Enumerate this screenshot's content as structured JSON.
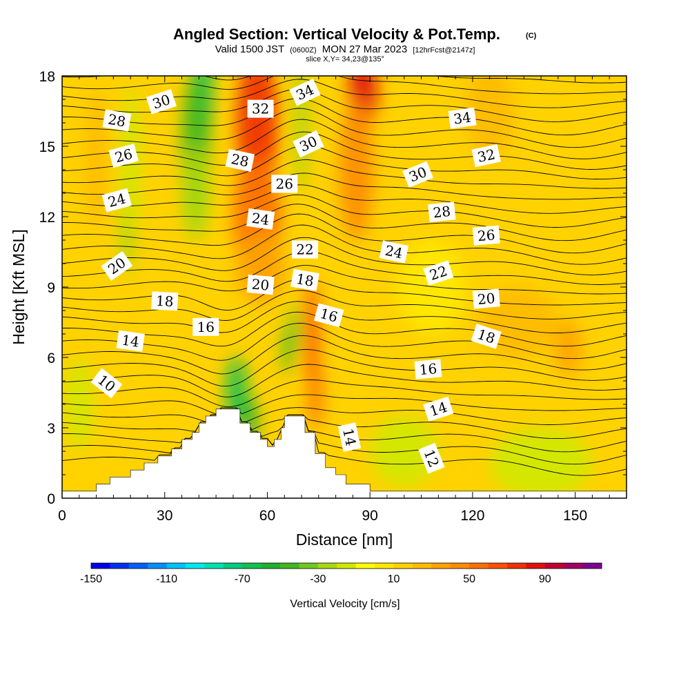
{
  "header": {
    "title": "Angled Section: Vertical Velocity & Pot.Temp.",
    "copyright": "(C)",
    "valid_prefix": "Valid 1500 JST",
    "valid_utc": "(0600Z)",
    "valid_date": "MON 27 Mar 2023",
    "forecast": "[12hrFcst@2147z]",
    "slice": "slice X,Y= 34,23@135°"
  },
  "chart_data": {
    "type": "heatmap",
    "xlabel": "Distance [nm]",
    "ylabel": "Height [Kft MSL]",
    "xlim": [
      0,
      165
    ],
    "ylim": [
      0,
      18
    ],
    "xticks": [
      0,
      30,
      60,
      90,
      120,
      150
    ],
    "yticks": [
      0,
      3,
      6,
      9,
      12,
      15,
      18
    ],
    "terrain_profile": [
      [
        0,
        0.3
      ],
      [
        10,
        0.3
      ],
      [
        10,
        0.6
      ],
      [
        14,
        0.6
      ],
      [
        14,
        0.9
      ],
      [
        20,
        0.9
      ],
      [
        20,
        1.2
      ],
      [
        24,
        1.2
      ],
      [
        24,
        1.5
      ],
      [
        28,
        1.5
      ],
      [
        28,
        1.8
      ],
      [
        32,
        1.8
      ],
      [
        32,
        2.1
      ],
      [
        35,
        2.1
      ],
      [
        35,
        2.5
      ],
      [
        38,
        2.5
      ],
      [
        38,
        2.8
      ],
      [
        40,
        2.8
      ],
      [
        40,
        3.2
      ],
      [
        42,
        3.2
      ],
      [
        42,
        3.5
      ],
      [
        45,
        3.5
      ],
      [
        45,
        3.8
      ],
      [
        52,
        3.8
      ],
      [
        52,
        3.2
      ],
      [
        55,
        3.2
      ],
      [
        55,
        2.8
      ],
      [
        58,
        2.8
      ],
      [
        58,
        2.5
      ],
      [
        60,
        2.5
      ],
      [
        60,
        2.2
      ],
      [
        62,
        2.2
      ],
      [
        62,
        2.5
      ],
      [
        64,
        2.5
      ],
      [
        64,
        3.0
      ],
      [
        65,
        3.0
      ],
      [
        65,
        3.5
      ],
      [
        71,
        3.5
      ],
      [
        71,
        2.8
      ],
      [
        74,
        2.8
      ],
      [
        74,
        1.9
      ],
      [
        77,
        1.9
      ],
      [
        77,
        1.3
      ],
      [
        80,
        1.3
      ],
      [
        80,
        1.0
      ],
      [
        83,
        1.0
      ],
      [
        83,
        0.6
      ],
      [
        90,
        0.6
      ],
      [
        90,
        0.3
      ],
      [
        165,
        0.3
      ]
    ],
    "velocity_features": [
      {
        "x": 41,
        "y": 17.5,
        "value": -65,
        "rx": 3,
        "ry": 2.5
      },
      {
        "x": 39,
        "y": 15,
        "value": -45,
        "rx": 4,
        "ry": 3
      },
      {
        "x": 39,
        "y": 13,
        "value": -30,
        "rx": 4,
        "ry": 2
      },
      {
        "x": 19,
        "y": 11.5,
        "value": -28,
        "rx": 2,
        "ry": 2
      },
      {
        "x": 20,
        "y": 14.5,
        "value": -20,
        "rx": 3,
        "ry": 3
      },
      {
        "x": 57,
        "y": 16,
        "value": 78,
        "rx": 6,
        "ry": 3
      },
      {
        "x": 57,
        "y": 12,
        "value": 55,
        "rx": 7,
        "ry": 2.5
      },
      {
        "x": 58,
        "y": 9.8,
        "value": 35,
        "rx": 7,
        "ry": 1.5
      },
      {
        "x": 88,
        "y": 17.3,
        "value": 85,
        "rx": 4,
        "ry": 1.5
      },
      {
        "x": 86,
        "y": 14,
        "value": 40,
        "rx": 5,
        "ry": 3
      },
      {
        "x": 70,
        "y": 16,
        "value": -22,
        "rx": 2,
        "ry": 3
      },
      {
        "x": 73,
        "y": 7,
        "value": 60,
        "rx": 2,
        "ry": 2.3
      },
      {
        "x": 74,
        "y": 4.5,
        "value": 50,
        "rx": 2,
        "ry": 1.6
      },
      {
        "x": 51,
        "y": 4.6,
        "value": -70,
        "rx": 3,
        "ry": 1.4
      },
      {
        "x": 55,
        "y": 3.3,
        "value": -55,
        "rx": 2,
        "ry": 1
      },
      {
        "x": 66,
        "y": 6.3,
        "value": -45,
        "rx": 1.5,
        "ry": 1
      },
      {
        "x": 68,
        "y": 7.3,
        "value": -35,
        "rx": 1.5,
        "ry": 1
      },
      {
        "x": 148,
        "y": 6.4,
        "value": 35,
        "rx": 4,
        "ry": 1.2
      },
      {
        "x": 10,
        "y": 14.5,
        "value": 22,
        "rx": 3,
        "ry": 3
      },
      {
        "x": 28,
        "y": 6,
        "value": 18,
        "rx": 5,
        "ry": 1.5
      },
      {
        "x": 125,
        "y": 16.5,
        "value": 20,
        "rx": 7,
        "ry": 2
      },
      {
        "x": 133,
        "y": 7.5,
        "value": 20,
        "rx": 12,
        "ry": 1.5
      },
      {
        "x": 100,
        "y": 2,
        "value": -18,
        "rx": 10,
        "ry": 1.5
      },
      {
        "x": 140,
        "y": 1.5,
        "value": -12,
        "rx": 15,
        "ry": 1.5
      },
      {
        "x": 108,
        "y": 9,
        "value": 8,
        "rx": 10,
        "ry": 2
      },
      {
        "x": 5,
        "y": 4,
        "value": -15,
        "rx": 4,
        "ry": 2
      }
    ],
    "contour_labels": [
      {
        "text": "28",
        "x": 16,
        "y": 16.1,
        "angle": -10
      },
      {
        "text": "30",
        "x": 29,
        "y": 16.9,
        "angle": 18
      },
      {
        "text": "32",
        "x": 58,
        "y": 16.6,
        "angle": 0
      },
      {
        "text": "34",
        "x": 71,
        "y": 17.3,
        "angle": 25
      },
      {
        "text": "26",
        "x": 18,
        "y": 14.6,
        "angle": 15
      },
      {
        "text": "28",
        "x": 52,
        "y": 14.4,
        "angle": -12
      },
      {
        "text": "30",
        "x": 72,
        "y": 15.1,
        "angle": 25
      },
      {
        "text": "24",
        "x": 16,
        "y": 12.7,
        "angle": 15
      },
      {
        "text": "26",
        "x": 65,
        "y": 13.4,
        "angle": 0
      },
      {
        "text": "24",
        "x": 58,
        "y": 11.9,
        "angle": -8
      },
      {
        "text": "22",
        "x": 71,
        "y": 10.6,
        "angle": 0
      },
      {
        "text": "20",
        "x": 16,
        "y": 9.9,
        "angle": 35
      },
      {
        "text": "20",
        "x": 58,
        "y": 9.1,
        "angle": -5
      },
      {
        "text": "18",
        "x": 71,
        "y": 9.3,
        "angle": -10
      },
      {
        "text": "18",
        "x": 30,
        "y": 8.4,
        "angle": -3
      },
      {
        "text": "16",
        "x": 42,
        "y": 7.3,
        "angle": 0
      },
      {
        "text": "16",
        "x": 78,
        "y": 7.8,
        "angle": -15
      },
      {
        "text": "14",
        "x": 20,
        "y": 6.7,
        "angle": -8
      },
      {
        "text": "10",
        "x": 13,
        "y": 4.9,
        "angle": -38
      },
      {
        "text": "34",
        "x": 117,
        "y": 16.2,
        "angle": 8
      },
      {
        "text": "32",
        "x": 124,
        "y": 14.6,
        "angle": 12
      },
      {
        "text": "30",
        "x": 104,
        "y": 13.8,
        "angle": 22
      },
      {
        "text": "28",
        "x": 111,
        "y": 12.2,
        "angle": 6
      },
      {
        "text": "26",
        "x": 124,
        "y": 11.2,
        "angle": 5
      },
      {
        "text": "24",
        "x": 97,
        "y": 10.5,
        "angle": -12
      },
      {
        "text": "22",
        "x": 110,
        "y": 9.6,
        "angle": 18
      },
      {
        "text": "20",
        "x": 124,
        "y": 8.5,
        "angle": 5
      },
      {
        "text": "18",
        "x": 124,
        "y": 6.9,
        "angle": -18
      },
      {
        "text": "16",
        "x": 107,
        "y": 5.5,
        "angle": 5
      },
      {
        "text": "14",
        "x": 110,
        "y": 3.8,
        "angle": 18
      },
      {
        "text": "14",
        "x": 84,
        "y": 2.6,
        "angle": -78
      },
      {
        "text": "12",
        "x": 108,
        "y": 1.7,
        "angle": -68
      }
    ],
    "colorbar": {
      "label": "Vertical Velocity [cm/s]",
      "min": -150,
      "max": 120,
      "step": 10,
      "ticks": [
        -150,
        -110,
        -70,
        -30,
        10,
        50,
        90
      ],
      "colors": [
        "#0000e6",
        "#0030f0",
        "#0060f8",
        "#0090ff",
        "#00c0ff",
        "#00e8f0",
        "#00e0b0",
        "#00cc80",
        "#10c050",
        "#20b030",
        "#40b820",
        "#70c820",
        "#a8d810",
        "#d0e800",
        "#ffff00",
        "#ffe800",
        "#ffd200",
        "#ffbb00",
        "#ffa300",
        "#ff8c00",
        "#ff7000",
        "#ff5000",
        "#f03000",
        "#e01010",
        "#c00030",
        "#a00060",
        "#800090"
      ]
    }
  }
}
